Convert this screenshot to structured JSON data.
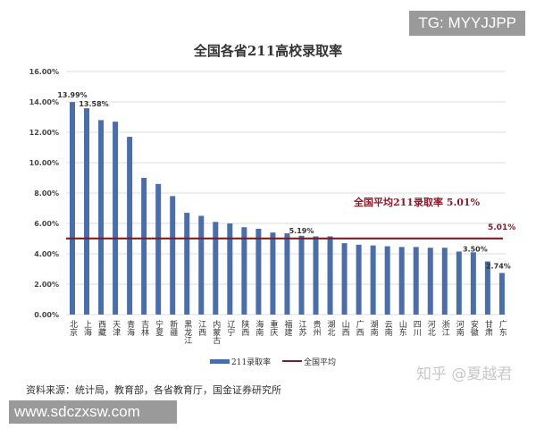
{
  "watermarks": {
    "top_right": "TG: MYYJJPP",
    "bottom_left": "www.sdczxsw.com",
    "zhihu": "知乎 @夏越君"
  },
  "source_note": "资料来源：统计局，教育部，各省教育厅，国金证券研究所",
  "colors": {
    "bar": "#4a6ea8",
    "avg_line": "#7a1f2a",
    "grid": "#d9d9d9",
    "annotation": "#8b1a2a"
  },
  "chart_data": {
    "type": "bar",
    "title": "全国各省211高校录取率",
    "xlabel": "",
    "ylabel": "",
    "ylim": [
      0,
      16
    ],
    "yticks": [
      "0.00%",
      "2.00%",
      "4.00%",
      "6.00%",
      "8.00%",
      "10.00%",
      "12.00%",
      "14.00%",
      "16.00%"
    ],
    "grid": true,
    "legend_position": "bottom",
    "categories": [
      "北京",
      "上海",
      "西藏",
      "天津",
      "青海",
      "吉林",
      "宁夏",
      "新疆",
      "黑龙江",
      "江西",
      "内蒙古",
      "辽宁",
      "陕西",
      "海南",
      "重庆",
      "福建",
      "江苏",
      "贵州",
      "湖北",
      "山西",
      "广西",
      "湖南",
      "云南",
      "山东",
      "四川",
      "河北",
      "浙江",
      "河南",
      "安徽",
      "甘肃",
      "广东"
    ],
    "series": [
      {
        "name": "211录取率",
        "type": "bar",
        "values": [
          13.99,
          13.58,
          12.8,
          12.7,
          11.7,
          9.0,
          8.6,
          7.8,
          6.7,
          6.5,
          6.1,
          6.0,
          5.75,
          5.65,
          5.4,
          5.35,
          5.19,
          5.15,
          5.15,
          4.7,
          4.6,
          4.55,
          4.5,
          4.45,
          4.45,
          4.4,
          4.4,
          4.15,
          4.1,
          3.5,
          2.74
        ]
      },
      {
        "name": "全国平均",
        "type": "line",
        "value": 5.01
      }
    ],
    "data_labels": [
      {
        "index": 0,
        "text": "13.99%"
      },
      {
        "index": 1,
        "text": "13.58%"
      },
      {
        "index": 16,
        "text": "5.19%"
      },
      {
        "index": 29,
        "text": "3.50%"
      },
      {
        "index": 30,
        "text": "2.74%"
      }
    ],
    "avg_label_end": "5.01%",
    "annotation": "全国平均211录取率 5.01%"
  }
}
